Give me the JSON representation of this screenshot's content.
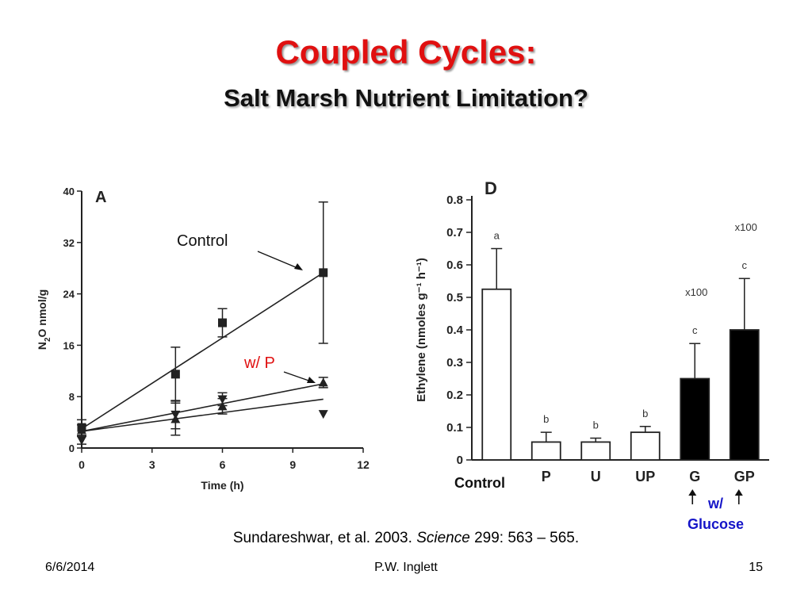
{
  "slide": {
    "title": "Coupled Cycles:",
    "subtitle": "Salt Marsh Nutrient Limitation?",
    "citation_pre": "Sundareshwar, et al. 2003. ",
    "citation_journal": "Science",
    "citation_post": " 299: 563 – 565.",
    "footer_date": "6/6/2014",
    "footer_author": "P.W. Inglett",
    "footer_page": "15",
    "colors": {
      "title": "#e01010",
      "annotation_red": "#e01010",
      "annotation_blue": "#1515c8"
    }
  },
  "annotations": {
    "control_a": "Control",
    "wp": "w/ P",
    "control_d": "Control",
    "w": "w/",
    "glucose": "Glucose"
  },
  "chart_data": [
    {
      "type": "scatter",
      "panel_label": "A",
      "xlabel": "Time (h)",
      "ylabel_main": "N",
      "ylabel_sub": "2",
      "ylabel_rest": "O nmol/g",
      "xlim": [
        0,
        12
      ],
      "ylim": [
        0,
        40
      ],
      "x_ticks": [
        "0",
        "3",
        "6",
        "9",
        "12"
      ],
      "y_ticks": [
        "0",
        "8",
        "16",
        "24",
        "32",
        "40"
      ],
      "series": [
        {
          "marker": "square",
          "x": [
            0,
            4,
            6,
            10.3
          ],
          "y": [
            3.2,
            11.5,
            19.5,
            27.3
          ],
          "err": [
            1.2,
            4.2,
            2.2,
            11
          ],
          "fit": [
            [
              0,
              3
            ],
            [
              10.3,
              27.3
            ]
          ]
        },
        {
          "marker": "triangle-up",
          "x": [
            0,
            4,
            6,
            10.3
          ],
          "y": [
            2.8,
            4.5,
            6.5,
            10.2
          ],
          "err": [
            0.8,
            2.5,
            1.2,
            0.8
          ],
          "fit": [
            [
              0,
              2.6
            ],
            [
              10.3,
              10
            ]
          ]
        },
        {
          "marker": "triangle-down",
          "x": [
            0,
            4,
            6,
            10.3
          ],
          "y": [
            1.2,
            5.2,
            7.6,
            5.3
          ],
          "err": [
            0.6,
            2.2,
            1.0,
            0
          ],
          "fit": [
            [
              0,
              2.6
            ],
            [
              10.3,
              7.6
            ]
          ]
        }
      ]
    },
    {
      "type": "bar",
      "panel_label": "D",
      "ylabel": "Ethylene (nmoles g⁻¹ h⁻¹)",
      "ylim": [
        0,
        0.8
      ],
      "y_ticks": [
        "0",
        "0.1",
        "0.2",
        "0.3",
        "0.4",
        "0.5",
        "0.6",
        "0.7",
        "0.8"
      ],
      "categories": [
        "",
        "P",
        "U",
        "UP",
        "G",
        "GP"
      ],
      "values": [
        0.525,
        0.055,
        0.055,
        0.085,
        0.25,
        0.4
      ],
      "errors": [
        0.125,
        0.03,
        0.012,
        0.018,
        0.108,
        0.158
      ],
      "letters": [
        "a",
        "b",
        "b",
        "b",
        "c",
        "c"
      ],
      "fills": [
        "white",
        "white",
        "white",
        "white",
        "black",
        "black"
      ],
      "scale_notes": [
        "",
        "",
        "",
        "",
        "x100",
        "x100"
      ]
    }
  ]
}
